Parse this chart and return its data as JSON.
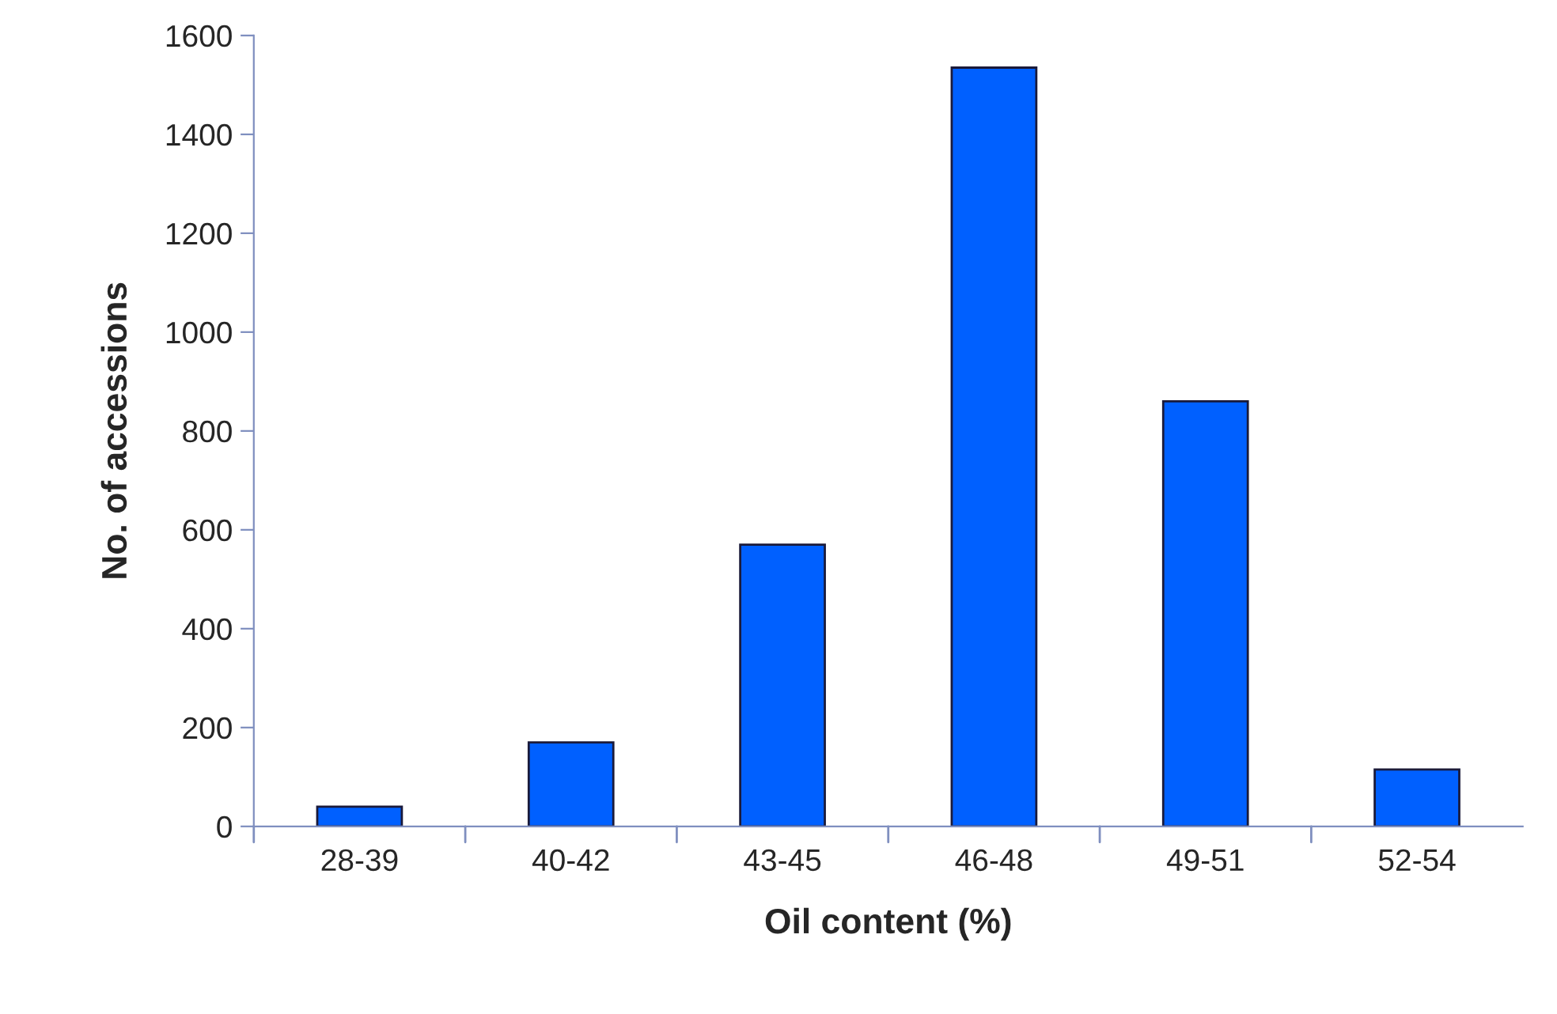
{
  "chart_data": {
    "type": "bar",
    "xlabel": "Oil content (%)",
    "ylabel": "No. of accessions",
    "categories": [
      "28-39",
      "40-42",
      "43-45",
      "46-48",
      "49-51",
      "52-54"
    ],
    "values": [
      40,
      170,
      570,
      1535,
      860,
      115
    ],
    "color": "#0060ff",
    "ylim": [
      0,
      1600
    ],
    "yticks": [
      0,
      200,
      400,
      600,
      800,
      1000,
      1200,
      1400,
      1600
    ],
    "grid": false,
    "legend": false
  }
}
